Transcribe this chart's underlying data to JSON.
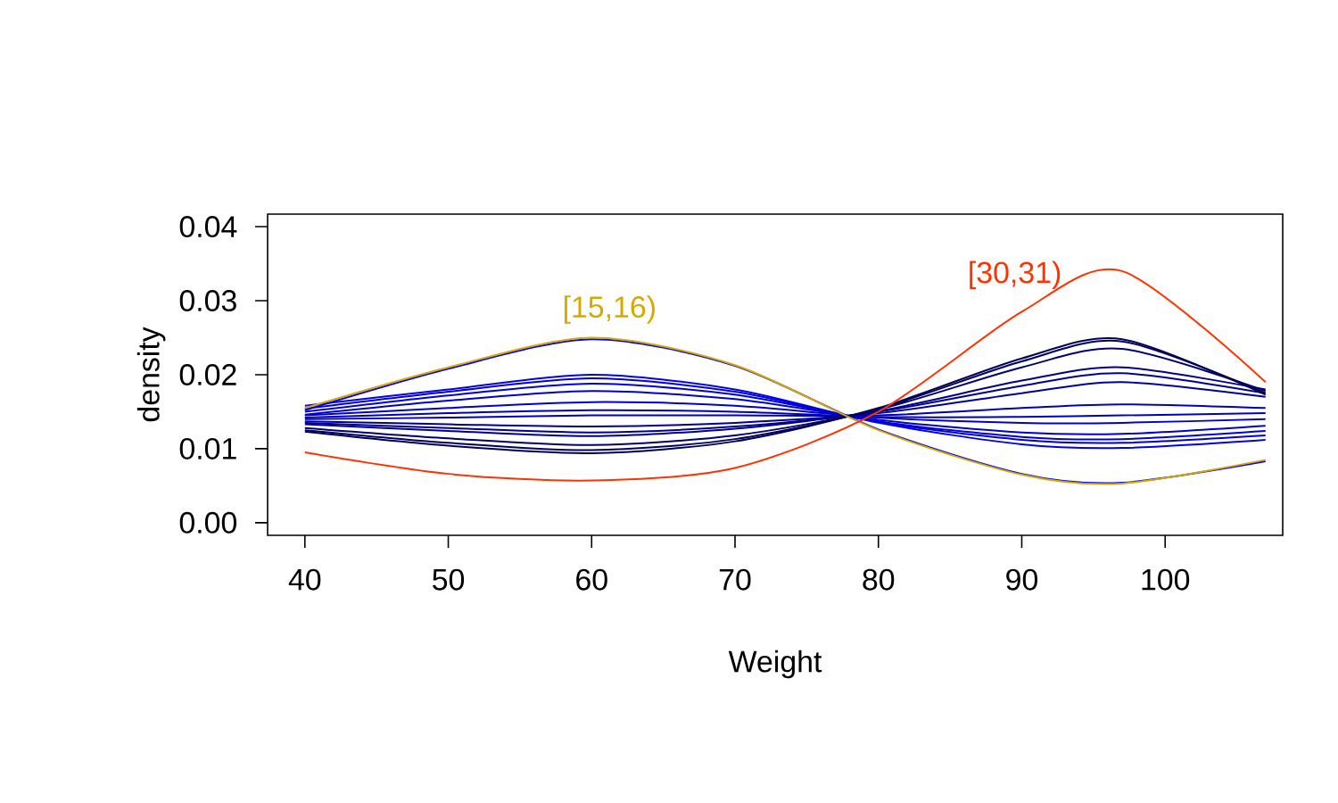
{
  "chart_data": {
    "type": "line",
    "xlabel": "Weight",
    "ylabel": "density",
    "x": [
      40,
      50,
      60,
      70,
      80,
      90,
      97,
      107
    ],
    "xlim": [
      37.4,
      108.2
    ],
    "ylim": [
      -0.0017,
      0.0417
    ],
    "xticks": [
      40,
      50,
      60,
      70,
      80,
      90,
      100
    ],
    "yticks": [
      {
        "value": 0,
        "label": "0.00"
      },
      0.01,
      0.02,
      0.03,
      0.04
    ],
    "series": [
      {
        "color": "#0000ff",
        "values": [
          0.0152,
          0.0208,
          0.0248,
          0.0212,
          0.0126,
          0.0066,
          0.0054,
          0.0083
        ]
      },
      {
        "color": "#0000ee",
        "values": [
          0.0158,
          0.018,
          0.02,
          0.018,
          0.0135,
          0.0106,
          0.0101,
          0.0112
        ]
      },
      {
        "color": "#0000dd",
        "values": [
          0.0154,
          0.0177,
          0.0195,
          0.0177,
          0.0136,
          0.0112,
          0.0108,
          0.0118
        ]
      },
      {
        "color": "#0000dd",
        "values": [
          0.015,
          0.0172,
          0.0188,
          0.0173,
          0.0137,
          0.0116,
          0.0113,
          0.0124
        ]
      },
      {
        "color": "#0000cc",
        "values": [
          0.0146,
          0.0165,
          0.0178,
          0.0167,
          0.0139,
          0.0122,
          0.012,
          0.0131
        ]
      },
      {
        "color": "#0000cc",
        "values": [
          0.0145,
          0.0155,
          0.0163,
          0.0158,
          0.0142,
          0.0135,
          0.0135,
          0.014
        ]
      },
      {
        "color": "#0000bb",
        "values": [
          0.0142,
          0.0148,
          0.0152,
          0.015,
          0.0143,
          0.0143,
          0.0145,
          0.0148
        ]
      },
      {
        "color": "#0000bb",
        "values": [
          0.014,
          0.0142,
          0.0145,
          0.0145,
          0.0145,
          0.0155,
          0.016,
          0.0155
        ]
      },
      {
        "color": "#000099",
        "values": [
          0.0137,
          0.0133,
          0.013,
          0.0135,
          0.0148,
          0.0175,
          0.019,
          0.017
        ]
      },
      {
        "color": "#000090",
        "values": [
          0.0135,
          0.0128,
          0.0122,
          0.013,
          0.015,
          0.0185,
          0.0202,
          0.0175
        ]
      },
      {
        "color": "#000088",
        "values": [
          0.0133,
          0.0124,
          0.0117,
          0.0127,
          0.0151,
          0.0192,
          0.021,
          0.018
        ]
      },
      {
        "color": "#000070",
        "values": [
          0.0128,
          0.0114,
          0.0105,
          0.0118,
          0.0153,
          0.021,
          0.0235,
          0.0178
        ]
      },
      {
        "color": "#000060",
        "values": [
          0.0125,
          0.0108,
          0.0098,
          0.0113,
          0.0154,
          0.0218,
          0.0245,
          0.0175
        ]
      },
      {
        "color": "#000055",
        "values": [
          0.0123,
          0.0104,
          0.0094,
          0.011,
          0.0155,
          0.0222,
          0.0248,
          0.0173
        ]
      },
      {
        "name": "[15,16)",
        "color": "#d4a900",
        "values": [
          0.0155,
          0.021,
          0.025,
          0.0213,
          0.0125,
          0.0065,
          0.0053,
          0.0085
        ]
      },
      {
        "name": "[30,31)",
        "color": "#ff3300",
        "values": [
          0.0095,
          0.0066,
          0.0057,
          0.0074,
          0.015,
          0.0285,
          0.034,
          0.019
        ]
      }
    ]
  }
}
